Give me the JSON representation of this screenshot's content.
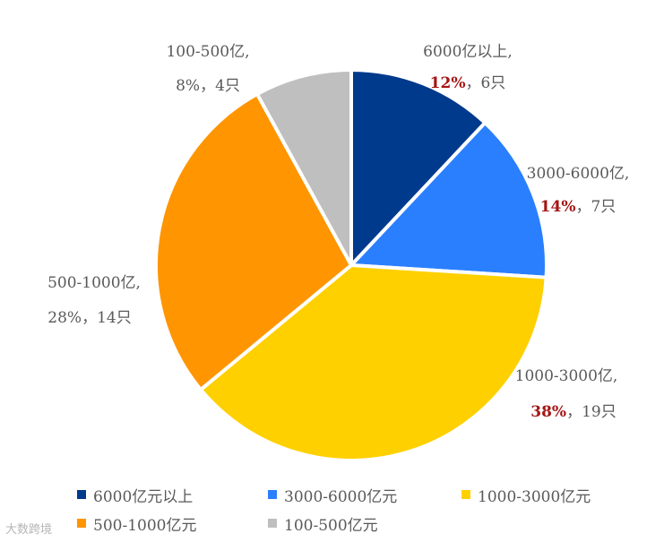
{
  "chart_data": {
    "type": "pie",
    "colors": [
      "#003a8c",
      "#2a7fff",
      "#ffd000",
      "#ff9500",
      "#bfbfbf"
    ],
    "slices": [
      {
        "label_line1": "6000亿以上,",
        "percent": "12%",
        "count": "6只",
        "value": 6,
        "legend": "6000亿元以上"
      },
      {
        "label_line1": "3000-6000亿,",
        "percent": "14%",
        "count": "7只",
        "value": 7,
        "legend": "3000-6000亿元"
      },
      {
        "label_line1": "1000-3000亿,",
        "percent": "38%",
        "count": "19只",
        "value": 19,
        "legend": "1000-3000亿元"
      },
      {
        "label_line1": "500-1000亿,",
        "percent": "28%",
        "count": "14只",
        "value": 14,
        "legend": "500-1000亿元"
      },
      {
        "label_line1": "100-500亿,",
        "percent": "8%",
        "count": "4只",
        "value": 4,
        "legend": "100-500亿元"
      }
    ],
    "highlighted_percent_color": "#a31515",
    "legend_position": "bottom"
  },
  "watermark": "大数跨境"
}
